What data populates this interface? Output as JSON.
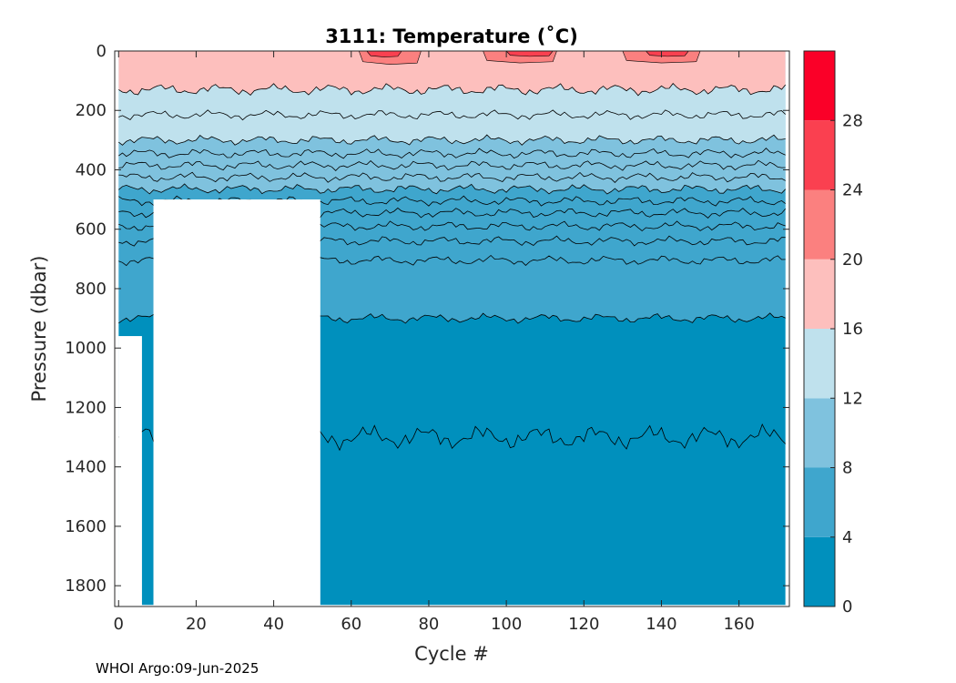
{
  "chart_data": {
    "type": "heatmap",
    "title": "3111:  Temperature (˚C)",
    "xlabel": "Cycle #",
    "ylabel": "Pressure (dbar)",
    "xlim": [
      -1,
      173
    ],
    "ylim": [
      0,
      1870
    ],
    "y_reversed": true,
    "xticks": [
      0,
      20,
      40,
      60,
      80,
      100,
      120,
      140,
      160
    ],
    "yticks": [
      0,
      200,
      400,
      600,
      800,
      1000,
      1200,
      1400,
      1600,
      1800
    ],
    "colorbar": {
      "min": 0,
      "max": 32,
      "ticks": [
        0,
        4,
        8,
        12,
        16,
        20,
        24,
        28
      ],
      "levels": [
        {
          "from": 0,
          "to": 4,
          "color": "#0090bd"
        },
        {
          "from": 4,
          "to": 8,
          "color": "#3fa6cd"
        },
        {
          "from": 8,
          "to": 12,
          "color": "#7fc2de"
        },
        {
          "from": 12,
          "to": 16,
          "color": "#bfe1ed"
        },
        {
          "from": 16,
          "to": 20,
          "color": "#fdbfbd"
        },
        {
          "from": 20,
          "to": 24,
          "color": "#fb807f"
        },
        {
          "from": 24,
          "to": 28,
          "color": "#fa4050"
        },
        {
          "from": 28,
          "to": 32,
          "color": "#fa0028"
        }
      ]
    },
    "data_region": [
      {
        "x": [
          0,
          6
        ],
        "p_bottom": 960
      },
      {
        "x": [
          6,
          9
        ],
        "p_bottom": 1865
      },
      {
        "x": [
          9,
          52
        ],
        "p_bottom": 500
      },
      {
        "x": [
          52,
          172
        ],
        "p_bottom": 1865
      }
    ],
    "isotherm_depths": [
      {
        "temp": 16,
        "depth": 130
      },
      {
        "temp": 14,
        "depth": 215
      },
      {
        "temp": 12,
        "depth": 300
      },
      {
        "temp": 11,
        "depth": 345
      },
      {
        "temp": 10,
        "depth": 385
      },
      {
        "temp": 9,
        "depth": 425
      },
      {
        "temp": 8,
        "depth": 465
      },
      {
        "temp": 7,
        "depth": 505
      },
      {
        "temp": 6.5,
        "depth": 545
      },
      {
        "temp": 6,
        "depth": 590
      },
      {
        "temp": 5,
        "depth": 640
      },
      {
        "temp": 4.5,
        "depth": 705
      },
      {
        "temp": 4,
        "depth": 900
      },
      {
        "temp": 3,
        "depth": 1300
      }
    ],
    "warm_patches": [
      {
        "x": [
          62,
          78
        ],
        "depth": 45,
        "temp": 22
      },
      {
        "x": [
          94,
          113
        ],
        "depth": 40,
        "temp": 22
      },
      {
        "x": [
          130,
          150
        ],
        "depth": 40,
        "temp": 22
      },
      {
        "x": [
          64,
          73
        ],
        "depth": 20,
        "temp": 26
      },
      {
        "x": [
          100,
          112
        ],
        "depth": 18,
        "temp": 26
      },
      {
        "x": [
          136,
          147
        ],
        "depth": 18,
        "temp": 26
      }
    ]
  },
  "footer": "WHOI Argo:09-Jun-2025"
}
